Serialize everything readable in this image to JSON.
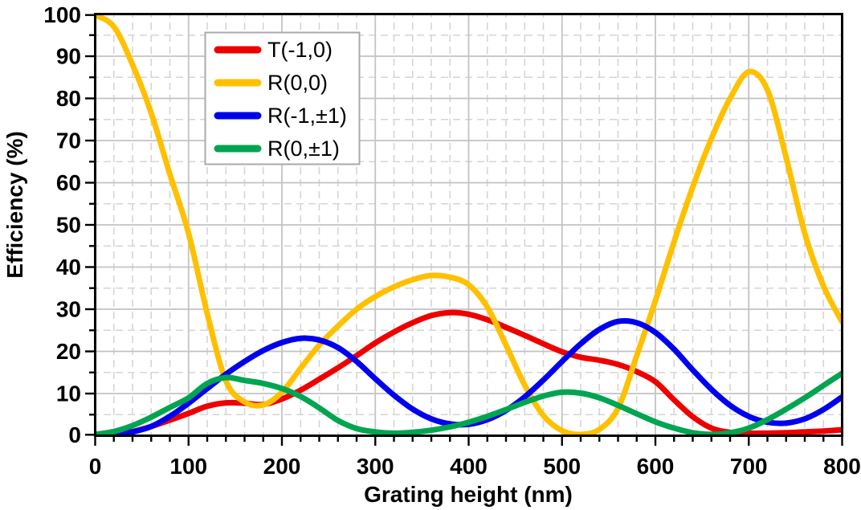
{
  "chart_data": {
    "type": "line",
    "title": "",
    "xlabel": "Grating height (nm)",
    "ylabel": "Efficiency (%)",
    "xlim": [
      0,
      800
    ],
    "ylim": [
      0,
      100
    ],
    "x_ticks": [
      0,
      100,
      200,
      300,
      400,
      500,
      600,
      700,
      800
    ],
    "y_ticks": [
      0,
      10,
      20,
      30,
      40,
      50,
      60,
      70,
      80,
      90,
      100
    ],
    "x_minor_step": 20,
    "y_minor_step": 5,
    "grid": {
      "major_style": "solid",
      "minor_style": "dashed",
      "major_color": "#c3c3c3",
      "minor_color": "#d5d5d5"
    },
    "frame_color": "#000000",
    "legend": {
      "position": "inset-top-left",
      "border_color": "#aaaaaa",
      "background": "#ffffff"
    },
    "x": [
      0,
      20,
      40,
      60,
      80,
      100,
      120,
      140,
      160,
      180,
      200,
      220,
      240,
      260,
      280,
      300,
      320,
      340,
      360,
      380,
      400,
      420,
      440,
      460,
      480,
      500,
      520,
      540,
      560,
      580,
      600,
      620,
      640,
      660,
      680,
      700,
      720,
      740,
      760,
      780,
      800
    ],
    "series": [
      {
        "name": "T(-1,0)",
        "color": "#ee0000",
        "values": [
          0,
          0.3,
          1.0,
          2.2,
          3.7,
          5.3,
          7.0,
          7.8,
          7.7,
          7.4,
          8.7,
          10.8,
          13.4,
          16.1,
          19.0,
          22.0,
          24.6,
          26.8,
          28.5,
          29.2,
          28.8,
          27.5,
          25.7,
          23.8,
          21.8,
          19.9,
          18.6,
          17.9,
          16.9,
          15.2,
          12.8,
          8.5,
          4.5,
          1.8,
          0.8,
          0.6,
          0.6,
          0.7,
          0.9,
          1.1,
          1.4
        ]
      },
      {
        "name": "R(0,0)",
        "color": "#ffc000",
        "values": [
          100,
          97,
          88,
          76.5,
          62,
          48,
          29,
          13,
          8,
          7.3,
          10.3,
          16,
          21.5,
          26,
          30,
          33,
          35.3,
          37,
          38,
          37.6,
          35.8,
          30.5,
          21.5,
          12,
          4.8,
          1.2,
          0.3,
          1.5,
          6.5,
          19,
          32,
          46,
          59,
          70.5,
          80,
          86.3,
          82,
          66,
          48,
          35.5,
          27
        ]
      },
      {
        "name": "R(-1,±1)",
        "color": "#0000ee",
        "values": [
          0,
          0.2,
          0.9,
          2.2,
          4.6,
          7.7,
          11.2,
          14.6,
          17.6,
          20.2,
          22.1,
          23.1,
          22.7,
          20.9,
          17.6,
          13.5,
          9.6,
          6.3,
          4.0,
          2.8,
          2.7,
          3.8,
          6.0,
          9.2,
          13.2,
          17.6,
          21.8,
          25.2,
          27.1,
          26.8,
          24.5,
          20.5,
          15.6,
          11.0,
          7.2,
          4.6,
          3.2,
          3.0,
          4.0,
          6.2,
          9.2
        ]
      },
      {
        "name": "R(0,±1)",
        "color": "#00a550",
        "values": [
          0.3,
          1.0,
          2.4,
          4.4,
          6.7,
          9.0,
          12.4,
          13.8,
          13.1,
          12.4,
          11.2,
          9.3,
          6.6,
          3.6,
          1.7,
          0.9,
          0.6,
          0.8,
          1.3,
          2.1,
          3.2,
          4.6,
          6.2,
          7.9,
          9.4,
          10.3,
          10.1,
          9.0,
          7.2,
          5.2,
          3.3,
          1.8,
          0.7,
          0.3,
          0.7,
          1.8,
          3.8,
          6.3,
          9.0,
          11.9,
          14.8
        ]
      }
    ]
  }
}
